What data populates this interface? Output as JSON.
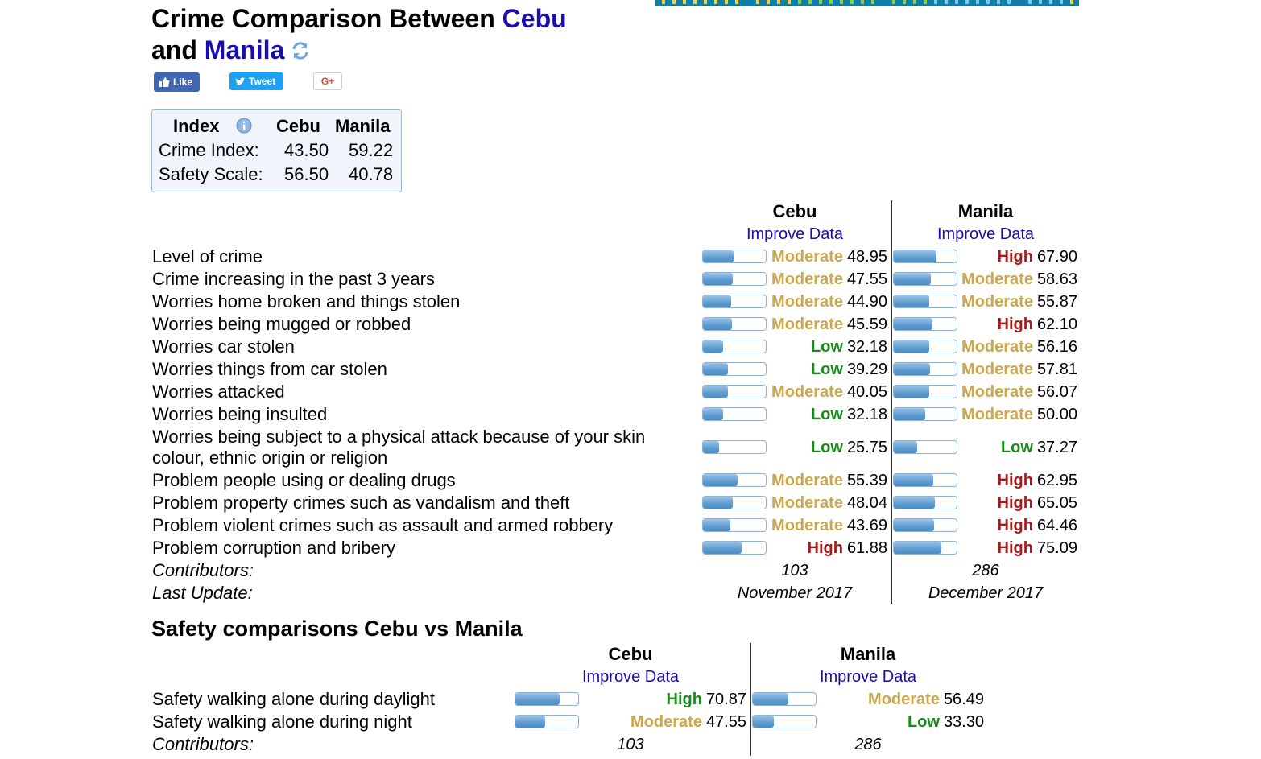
{
  "title": {
    "prefix": "Crime Comparison Between ",
    "city1": "Cebu",
    "middle": "and ",
    "city2": "Manila"
  },
  "social": {
    "like": "Like",
    "tweet": "Tweet",
    "gplus": "G+"
  },
  "index_table": {
    "headers": [
      "Index",
      "Cebu",
      "Manila"
    ],
    "rows": [
      {
        "label": "Crime Index:",
        "cebu": "43.50",
        "manila": "59.22"
      },
      {
        "label": "Safety Scale:",
        "cebu": "56.50",
        "manila": "40.78"
      }
    ]
  },
  "crime": {
    "city1": "Cebu",
    "city2": "Manila",
    "improve": "Improve Data",
    "rows": [
      {
        "label": "Level of crime",
        "c1": {
          "level": "Moderate",
          "value": "48.95"
        },
        "c2": {
          "level": "High",
          "value": "67.90"
        }
      },
      {
        "label": "Crime increasing in the past 3 years",
        "c1": {
          "level": "Moderate",
          "value": "47.55"
        },
        "c2": {
          "level": "Moderate",
          "value": "58.63"
        }
      },
      {
        "label": "Worries home broken and things stolen",
        "c1": {
          "level": "Moderate",
          "value": "44.90"
        },
        "c2": {
          "level": "Moderate",
          "value": "55.87"
        }
      },
      {
        "label": "Worries being mugged or robbed",
        "c1": {
          "level": "Moderate",
          "value": "45.59"
        },
        "c2": {
          "level": "High",
          "value": "62.10"
        }
      },
      {
        "label": "Worries car stolen",
        "c1": {
          "level": "Low",
          "value": "32.18"
        },
        "c2": {
          "level": "Moderate",
          "value": "56.16"
        }
      },
      {
        "label": "Worries things from car stolen",
        "c1": {
          "level": "Low",
          "value": "39.29"
        },
        "c2": {
          "level": "Moderate",
          "value": "57.81"
        }
      },
      {
        "label": "Worries attacked",
        "c1": {
          "level": "Moderate",
          "value": "40.05"
        },
        "c2": {
          "level": "Moderate",
          "value": "56.07"
        }
      },
      {
        "label": "Worries being insulted",
        "c1": {
          "level": "Low",
          "value": "32.18"
        },
        "c2": {
          "level": "Moderate",
          "value": "50.00"
        }
      },
      {
        "label": "Worries being subject to a physical attack because of your skin",
        "label2": "colour, ethnic origin or religion",
        "c1": {
          "level": "Low",
          "value": "25.75"
        },
        "c2": {
          "level": "Low",
          "value": "37.27"
        }
      },
      {
        "label": "Problem people using or dealing drugs",
        "c1": {
          "level": "Moderate",
          "value": "55.39"
        },
        "c2": {
          "level": "High",
          "value": "62.95"
        }
      },
      {
        "label": "Problem property crimes such as vandalism and theft",
        "c1": {
          "level": "Moderate",
          "value": "48.04"
        },
        "c2": {
          "level": "High",
          "value": "65.05"
        }
      },
      {
        "label": "Problem violent crimes such as assault and armed robbery",
        "c1": {
          "level": "Moderate",
          "value": "43.69"
        },
        "c2": {
          "level": "High",
          "value": "64.46"
        }
      },
      {
        "label": "Problem corruption and bribery",
        "c1": {
          "level": "High",
          "value": "61.88"
        },
        "c2": {
          "level": "High",
          "value": "75.09"
        }
      }
    ],
    "contributors_label": "Contributors:",
    "contributors": {
      "c1": "103",
      "c2": "286"
    },
    "last_update_label": "Last Update:",
    "last_update": {
      "c1": "November 2017",
      "c2": "December 2017"
    }
  },
  "safety": {
    "heading": "Safety comparisons Cebu vs Manila",
    "city1": "Cebu",
    "city2": "Manila",
    "improve": "Improve Data",
    "rows": [
      {
        "label": "Safety walking alone during daylight",
        "c1": {
          "level": "High",
          "value": "70.87"
        },
        "c2": {
          "level": "Moderate",
          "value": "56.49"
        }
      },
      {
        "label": "Safety walking alone during night",
        "c1": {
          "level": "Moderate",
          "value": "47.55"
        },
        "c2": {
          "level": "Low",
          "value": "33.30"
        }
      }
    ],
    "contributors_label": "Contributors:",
    "contributors": {
      "c1": "103",
      "c2": "286"
    }
  },
  "colors": {
    "link": "#1a0dab",
    "low": "#1a8a1a",
    "moderate": "#cda84a",
    "high": "#a31d1d",
    "bar": "#5e9bd0"
  }
}
